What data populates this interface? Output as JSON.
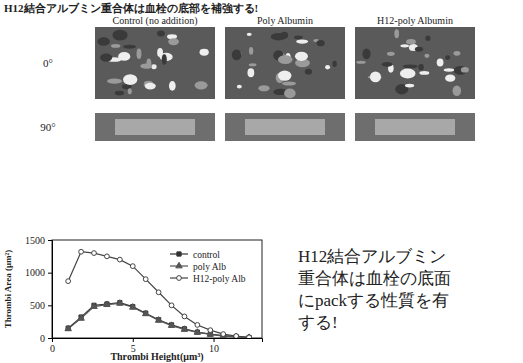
{
  "chart_data": {
    "type": "line",
    "title": "H12結合アルブミン重合体は血栓の底部を補強する!",
    "x_label": "Thrombi Height(μm³)",
    "y_label": "Thrombi Area (μm²)",
    "x": [
      1,
      1.8,
      2.6,
      3.4,
      4.2,
      5,
      5.8,
      6.6,
      7.4,
      8.2,
      9,
      9.8,
      10.6,
      11.4,
      12.2
    ],
    "series": [
      {
        "name": "control",
        "color": "#333333",
        "marker": "square",
        "values": [
          150,
          320,
          500,
          520,
          540,
          480,
          380,
          280,
          200,
          140,
          90,
          60,
          35,
          20,
          8
        ]
      },
      {
        "name": "poly Alb",
        "color": "#555555",
        "marker": "triangle",
        "values": [
          140,
          300,
          480,
          510,
          530,
          470,
          370,
          270,
          190,
          130,
          85,
          55,
          30,
          18,
          6
        ]
      },
      {
        "name": "H12-poly Alb",
        "color": "#444444",
        "marker": "circle",
        "values": [
          870,
          1320,
          1300,
          1250,
          1200,
          1100,
          900,
          700,
          500,
          330,
          200,
          120,
          60,
          30,
          10
        ]
      }
    ],
    "xlim": [
      0,
      13
    ],
    "xticks": [
      0,
      5,
      10
    ],
    "ylim": [
      0,
      1500
    ],
    "yticks": [
      0,
      500,
      1000,
      1500
    ],
    "legend": "upper right",
    "annotations": [
      "H12結合アルブミン",
      "重合体は血栓の底面",
      "にpackする性質を有",
      "する!"
    ]
  },
  "micrographs": {
    "columns": [
      "Control (no addition)",
      "Poly Albumin",
      "H12-poly Albumin"
    ],
    "rows": [
      "0°",
      "90°"
    ]
  }
}
